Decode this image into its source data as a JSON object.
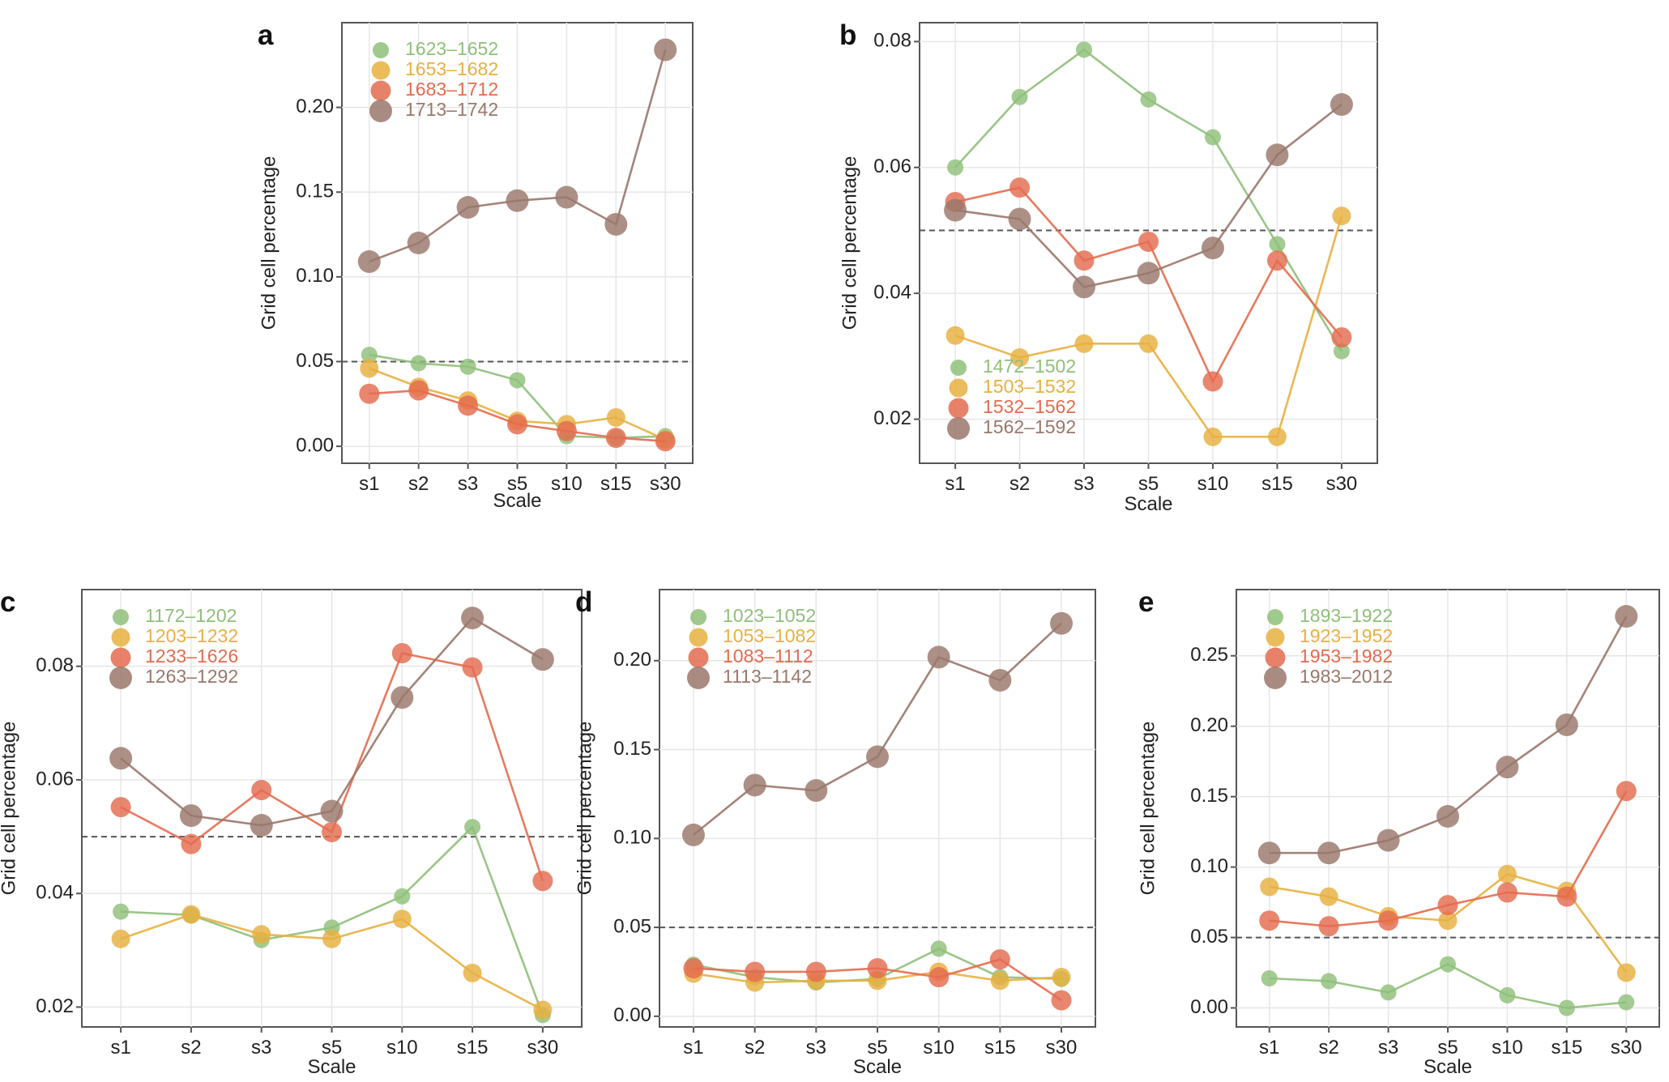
{
  "figure": {
    "title": ""
  },
  "colors": {
    "green": "#8fbf7a",
    "yellow": "#e8b040",
    "red": "#e46b4f",
    "brown": "#9a776b"
  },
  "chart_data": [
    {
      "type": "line",
      "panel": "a",
      "xlabel": "Scale",
      "ylabel": "Grid cell percentage",
      "categories": [
        "s1",
        "s2",
        "s3",
        "s5",
        "s10",
        "s15",
        "s30"
      ],
      "ylim": [
        -0.01,
        0.25
      ],
      "yticks": [
        0.0,
        0.05,
        0.1,
        0.15,
        0.2
      ],
      "ytick_labels": [
        "0.00",
        "0.05",
        "0.10",
        "0.15",
        "0.20"
      ],
      "reference_line": 0.05,
      "legend_position": "top-left",
      "series": [
        {
          "name": "1623–1652",
          "color": "#8fbf7a",
          "values": [
            0.054,
            0.049,
            0.047,
            0.039,
            0.006,
            0.005,
            0.006
          ]
        },
        {
          "name": "1653–1682",
          "color": "#e8b040",
          "values": [
            0.046,
            0.035,
            0.027,
            0.015,
            0.013,
            0.017,
            0.004
          ]
        },
        {
          "name": "1683–1712",
          "color": "#e46b4f",
          "values": [
            0.031,
            0.033,
            0.024,
            0.013,
            0.009,
            0.005,
            0.003
          ]
        },
        {
          "name": "1713–1742",
          "color": "#9a776b",
          "values": [
            0.109,
            0.12,
            0.141,
            0.145,
            0.147,
            0.131,
            0.234
          ]
        }
      ]
    },
    {
      "type": "line",
      "panel": "b",
      "xlabel": "Scale",
      "ylabel": "Grid cell percentage",
      "categories": [
        "s1",
        "s2",
        "s3",
        "s5",
        "s10",
        "s15",
        "s30"
      ],
      "ylim": [
        0.013,
        0.083
      ],
      "yticks": [
        0.02,
        0.04,
        0.06,
        0.08
      ],
      "ytick_labels": [
        "0.02",
        "0.04",
        "0.06",
        "0.08"
      ],
      "reference_line": 0.05,
      "legend_position": "bottom-left",
      "series": [
        {
          "name": "1472–1502",
          "color": "#8fbf7a",
          "values": [
            0.06,
            0.0712,
            0.0787,
            0.0708,
            0.0648,
            0.0478,
            0.0308
          ]
        },
        {
          "name": "1503–1532",
          "color": "#e8b040",
          "values": [
            0.0333,
            0.0298,
            0.032,
            0.032,
            0.0172,
            0.0172,
            0.0523
          ]
        },
        {
          "name": "1532–1562",
          "color": "#e46b4f",
          "values": [
            0.0545,
            0.0568,
            0.0452,
            0.0482,
            0.026,
            0.0452,
            0.033
          ]
        },
        {
          "name": "1562–1592",
          "color": "#9a776b",
          "values": [
            0.0532,
            0.0518,
            0.041,
            0.0432,
            0.0472,
            0.062,
            0.07
          ]
        }
      ]
    },
    {
      "type": "line",
      "panel": "c",
      "xlabel": "Scale",
      "ylabel": "Grid cell percentage",
      "categories": [
        "s1",
        "s2",
        "s3",
        "s5",
        "s10",
        "s15",
        "s30"
      ],
      "ylim": [
        0.0165,
        0.0935
      ],
      "yticks": [
        0.02,
        0.04,
        0.06,
        0.08
      ],
      "ytick_labels": [
        "0.02",
        "0.04",
        "0.06",
        "0.08"
      ],
      "reference_line": 0.05,
      "legend_position": "top-left",
      "series": [
        {
          "name": "1172–1202",
          "color": "#8fbf7a",
          "values": [
            0.0368,
            0.0362,
            0.0318,
            0.034,
            0.0395,
            0.0517,
            0.0186
          ]
        },
        {
          "name": "1203–1232",
          "color": "#e8b040",
          "values": [
            0.032,
            0.0363,
            0.0328,
            0.032,
            0.0355,
            0.026,
            0.0195
          ]
        },
        {
          "name": "1233–1626",
          "color": "#e46b4f",
          "values": [
            0.0552,
            0.0487,
            0.0582,
            0.0508,
            0.0823,
            0.0798,
            0.0422
          ]
        },
        {
          "name": "1263–1292",
          "color": "#9a776b",
          "values": [
            0.0638,
            0.0537,
            0.052,
            0.0545,
            0.0745,
            0.0885,
            0.0812
          ]
        }
      ]
    },
    {
      "type": "line",
      "panel": "d",
      "xlabel": "Scale",
      "ylabel": "Grid cell percentage",
      "categories": [
        "s1",
        "s2",
        "s3",
        "s5",
        "s10",
        "s15",
        "s30"
      ],
      "ylim": [
        -0.006,
        0.24
      ],
      "yticks": [
        0.0,
        0.05,
        0.1,
        0.15,
        0.2
      ],
      "ytick_labels": [
        "0.00",
        "0.05",
        "0.10",
        "0.15",
        "0.20"
      ],
      "reference_line": 0.05,
      "legend_position": "top-left",
      "series": [
        {
          "name": "1023–1052",
          "color": "#8fbf7a",
          "values": [
            0.029,
            0.022,
            0.019,
            0.021,
            0.038,
            0.022,
            0.021
          ]
        },
        {
          "name": "1053–1082",
          "color": "#e8b040",
          "values": [
            0.024,
            0.019,
            0.02,
            0.02,
            0.025,
            0.02,
            0.022
          ]
        },
        {
          "name": "1083–1112",
          "color": "#e46b4f",
          "values": [
            0.027,
            0.025,
            0.025,
            0.027,
            0.022,
            0.032,
            0.009
          ]
        },
        {
          "name": "1113–1142",
          "color": "#9a776b",
          "values": [
            0.102,
            0.13,
            0.127,
            0.146,
            0.202,
            0.189,
            0.221
          ]
        }
      ]
    },
    {
      "type": "line",
      "panel": "e",
      "xlabel": "Scale",
      "ylabel": "Grid cell percentage",
      "categories": [
        "s1",
        "s2",
        "s3",
        "s5",
        "s10",
        "s15",
        "s30"
      ],
      "ylim": [
        -0.0135,
        0.297
      ],
      "yticks": [
        0.0,
        0.05,
        0.1,
        0.15,
        0.2,
        0.25
      ],
      "ytick_labels": [
        "0.00",
        "0.05",
        "0.10",
        "0.15",
        "0.20",
        "0.25"
      ],
      "reference_line": 0.05,
      "legend_position": "top-left",
      "series": [
        {
          "name": "1893–1922",
          "color": "#8fbf7a",
          "values": [
            0.021,
            0.019,
            0.011,
            0.031,
            0.009,
            0.0,
            0.004
          ]
        },
        {
          "name": "1923–1952",
          "color": "#e8b040",
          "values": [
            0.086,
            0.079,
            0.065,
            0.062,
            0.095,
            0.083,
            0.025
          ]
        },
        {
          "name": "1953–1982",
          "color": "#e46b4f",
          "values": [
            0.062,
            0.058,
            0.062,
            0.073,
            0.082,
            0.079,
            0.154
          ]
        },
        {
          "name": "1983–2012",
          "color": "#9a776b",
          "values": [
            0.11,
            0.11,
            0.119,
            0.136,
            0.171,
            0.201,
            0.278
          ]
        }
      ]
    }
  ]
}
